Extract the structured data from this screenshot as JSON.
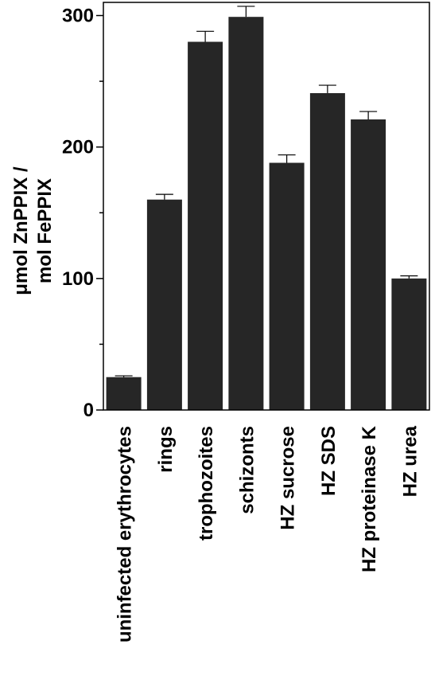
{
  "chart_data": {
    "type": "bar",
    "categories": [
      "uninfected erythrocytes",
      "rings",
      "trophozoites",
      "schizonts",
      "HZ sucrose",
      "HZ SDS",
      "HZ proteinase K",
      "HZ urea"
    ],
    "values": [
      25,
      160,
      280,
      299,
      188,
      241,
      221,
      100
    ],
    "errors": [
      1,
      4,
      8,
      8,
      6,
      6,
      6,
      2
    ],
    "title": "",
    "xlabel": "",
    "ylabel_lines": [
      "μmol ZnPPIX /",
      "mol FePPIX"
    ],
    "ylim": [
      0,
      310
    ],
    "yticks_major": [
      0,
      100,
      200,
      300
    ],
    "yticks_minor": [
      50,
      150,
      250
    ],
    "bar_color": "#262626",
    "grid": false
  }
}
